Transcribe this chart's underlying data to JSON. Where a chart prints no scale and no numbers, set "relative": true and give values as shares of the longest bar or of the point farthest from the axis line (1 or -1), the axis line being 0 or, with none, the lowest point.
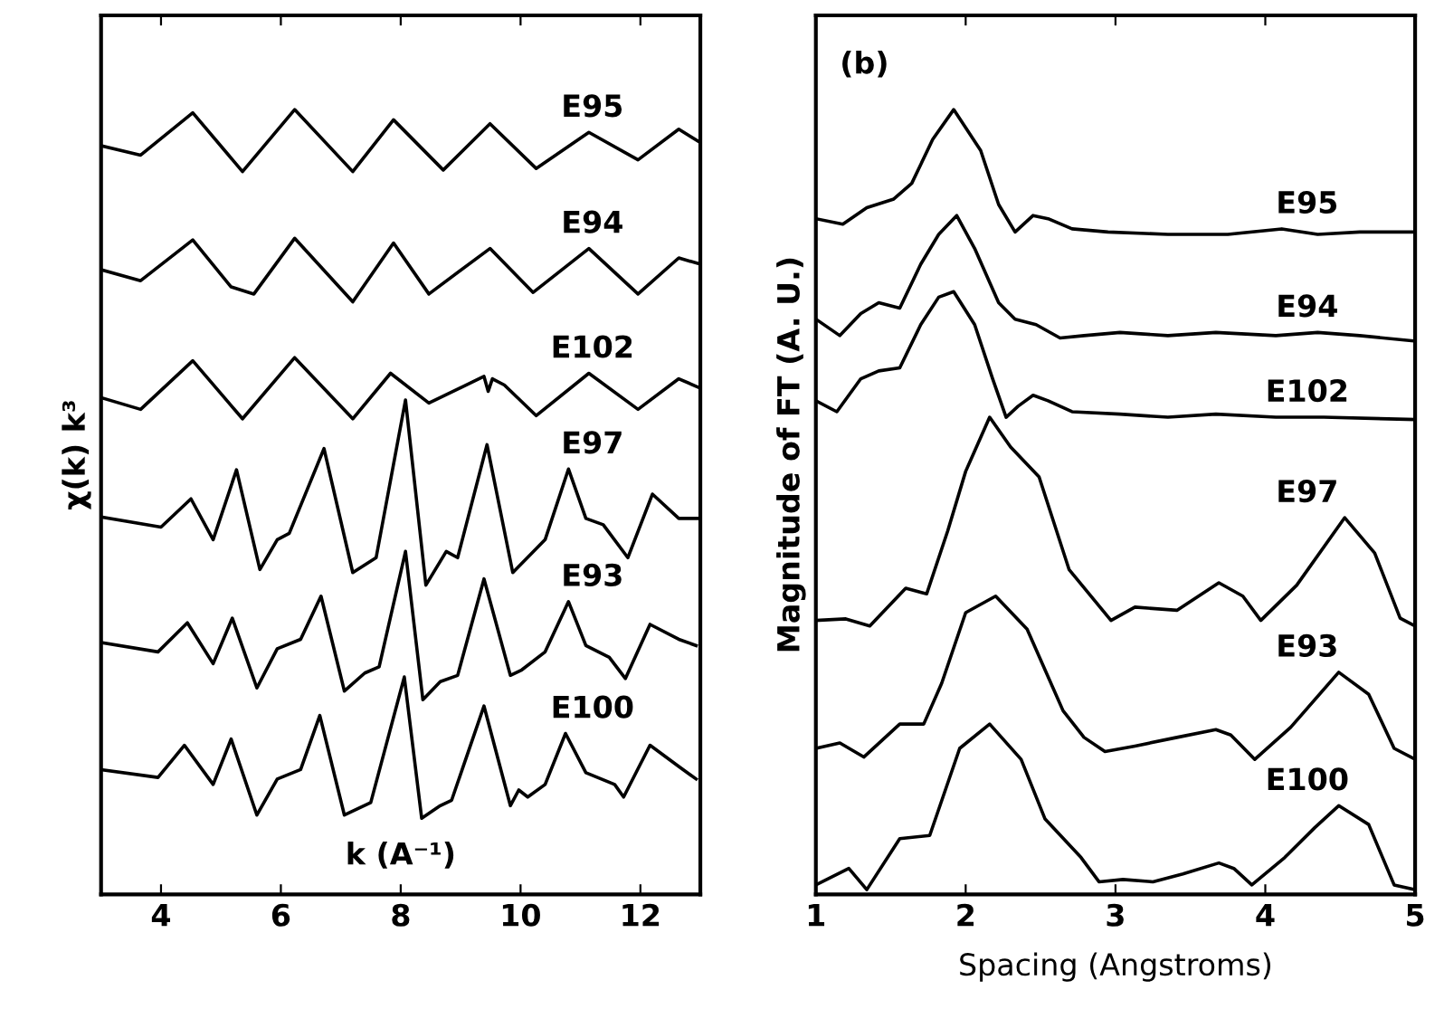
{
  "chart_data": [
    {
      "type": "line",
      "relative": true,
      "tick_labels": "x",
      "xlabel": "k (A⁻¹)",
      "ylabel": "χ(k) k³",
      "xlim": [
        3,
        13
      ],
      "xticks": [
        4,
        6,
        8,
        10,
        12
      ],
      "series": [
        {
          "name": "E95",
          "color": "#000000",
          "x": [
            3.0,
            3.66,
            4.53,
            5.36,
            6.23,
            7.2,
            7.88,
            8.71,
            9.49,
            10.26,
            11.14,
            11.96,
            12.64,
            13.0
          ],
          "values": [
            0.954,
            0.942,
            0.996,
            0.921,
            1.0,
            0.921,
            0.987,
            0.923,
            0.982,
            0.925,
            0.971,
            0.936,
            0.975,
            0.958
          ]
        },
        {
          "name": "E94",
          "color": "#000000",
          "x": [
            3.0,
            3.66,
            4.53,
            5.17,
            5.55,
            6.23,
            7.2,
            7.88,
            8.47,
            9.49,
            10.21,
            11.14,
            11.96,
            12.64,
            13.0
          ],
          "values": [
            0.796,
            0.782,
            0.834,
            0.774,
            0.765,
            0.836,
            0.755,
            0.83,
            0.765,
            0.823,
            0.767,
            0.823,
            0.765,
            0.811,
            0.803
          ]
        },
        {
          "name": "E102",
          "color": "#000000",
          "x": [
            3.0,
            3.66,
            4.53,
            5.36,
            6.23,
            7.2,
            7.83,
            8.47,
            9.39,
            9.46,
            9.53,
            9.73,
            10.26,
            11.14,
            11.96,
            12.64,
            13.0
          ],
          "values": [
            0.633,
            0.618,
            0.68,
            0.606,
            0.684,
            0.606,
            0.664,
            0.626,
            0.66,
            0.641,
            0.657,
            0.649,
            0.61,
            0.664,
            0.618,
            0.657,
            0.645
          ]
        },
        {
          "name": "E97",
          "color": "#000000",
          "x": [
            3.0,
            4.0,
            4.5,
            4.87,
            5.26,
            5.65,
            5.94,
            6.14,
            6.72,
            7.2,
            7.59,
            8.08,
            8.42,
            8.76,
            8.95,
            9.44,
            9.87,
            10.41,
            10.8,
            11.09,
            11.38,
            11.79,
            12.2,
            12.64,
            12.98
          ],
          "values": [
            0.481,
            0.468,
            0.504,
            0.452,
            0.541,
            0.414,
            0.452,
            0.46,
            0.568,
            0.41,
            0.429,
            0.63,
            0.394,
            0.437,
            0.429,
            0.573,
            0.41,
            0.452,
            0.542,
            0.479,
            0.471,
            0.429,
            0.51,
            0.479,
            0.479
          ]
        },
        {
          "name": "E93",
          "color": "#000000",
          "x": [
            3.0,
            3.95,
            4.44,
            4.87,
            5.19,
            5.6,
            5.94,
            6.33,
            6.67,
            7.06,
            7.4,
            7.64,
            8.08,
            8.37,
            8.66,
            8.95,
            9.39,
            9.83,
            10.02,
            10.41,
            10.8,
            11.09,
            11.48,
            11.75,
            12.16,
            12.64,
            12.93
          ],
          "values": [
            0.321,
            0.309,
            0.346,
            0.294,
            0.352,
            0.263,
            0.313,
            0.325,
            0.38,
            0.259,
            0.282,
            0.29,
            0.437,
            0.248,
            0.271,
            0.279,
            0.402,
            0.279,
            0.286,
            0.309,
            0.373,
            0.317,
            0.302,
            0.275,
            0.344,
            0.325,
            0.317
          ]
        },
        {
          "name": "E100",
          "color": "#000000",
          "x": [
            3.0,
            3.95,
            4.39,
            4.87,
            5.17,
            5.6,
            5.94,
            6.33,
            6.65,
            7.06,
            7.5,
            8.06,
            8.35,
            8.66,
            8.85,
            9.39,
            9.83,
            9.97,
            10.12,
            10.41,
            10.75,
            11.09,
            11.57,
            11.72,
            12.16,
            12.64,
            12.93
          ],
          "values": [
            0.159,
            0.149,
            0.19,
            0.14,
            0.198,
            0.101,
            0.147,
            0.159,
            0.228,
            0.101,
            0.117,
            0.277,
            0.097,
            0.113,
            0.12,
            0.24,
            0.113,
            0.133,
            0.124,
            0.14,
            0.205,
            0.155,
            0.14,
            0.124,
            0.19,
            0.163,
            0.147
          ]
        }
      ]
    },
    {
      "type": "line",
      "relative": true,
      "tick_labels": "x",
      "xlabel": "Spacing (Angstroms)",
      "ylabel": "Magnitude of FT (A. U.)",
      "xlim": [
        1,
        5
      ],
      "xticks": [
        1,
        2,
        3,
        4,
        5
      ],
      "annotations": [
        "(b)"
      ],
      "series": [
        {
          "name": "E95",
          "color": "#000000",
          "x": [
            1.0,
            1.18,
            1.34,
            1.52,
            1.64,
            1.78,
            1.92,
            2.1,
            2.22,
            2.33,
            2.45,
            2.55,
            2.71,
            2.95,
            3.35,
            3.75,
            4.11,
            4.35,
            4.63,
            5.0
          ],
          "values": [
            0.861,
            0.854,
            0.875,
            0.886,
            0.906,
            0.962,
            1.0,
            0.948,
            0.879,
            0.844,
            0.865,
            0.861,
            0.848,
            0.844,
            0.841,
            0.841,
            0.848,
            0.841,
            0.844,
            0.844
          ]
        },
        {
          "name": "E94",
          "color": "#000000",
          "x": [
            1.0,
            1.16,
            1.3,
            1.42,
            1.56,
            1.7,
            1.82,
            1.94,
            2.06,
            2.22,
            2.33,
            2.47,
            2.63,
            2.79,
            3.03,
            3.35,
            3.67,
            4.07,
            4.35,
            4.63,
            5.0
          ],
          "values": [
            0.733,
            0.712,
            0.74,
            0.754,
            0.747,
            0.803,
            0.841,
            0.865,
            0.823,
            0.754,
            0.733,
            0.726,
            0.709,
            0.712,
            0.716,
            0.712,
            0.716,
            0.712,
            0.716,
            0.712,
            0.705
          ]
        },
        {
          "name": "E102",
          "color": "#000000",
          "x": [
            1.0,
            1.14,
            1.3,
            1.42,
            1.56,
            1.7,
            1.82,
            1.92,
            2.06,
            2.18,
            2.27,
            2.35,
            2.45,
            2.55,
            2.71,
            3.03,
            3.35,
            3.67,
            4.07,
            4.39,
            5.0
          ],
          "values": [
            0.629,
            0.615,
            0.657,
            0.667,
            0.671,
            0.726,
            0.761,
            0.768,
            0.726,
            0.657,
            0.608,
            0.622,
            0.636,
            0.629,
            0.615,
            0.612,
            0.608,
            0.612,
            0.608,
            0.608,
            0.605
          ]
        },
        {
          "name": "E97",
          "color": "#000000",
          "x": [
            1.0,
            1.2,
            1.36,
            1.6,
            1.74,
            1.88,
            2.0,
            2.16,
            2.3,
            2.49,
            2.69,
            2.97,
            3.13,
            3.41,
            3.69,
            3.85,
            3.97,
            4.21,
            4.53,
            4.73,
            4.9,
            5.0
          ],
          "values": [
            0.349,
            0.351,
            0.342,
            0.39,
            0.383,
            0.463,
            0.539,
            0.608,
            0.57,
            0.532,
            0.414,
            0.349,
            0.366,
            0.362,
            0.397,
            0.38,
            0.349,
            0.394,
            0.48,
            0.435,
            0.352,
            0.342
          ]
        },
        {
          "name": "E93",
          "color": "#000000",
          "x": [
            1.0,
            1.16,
            1.32,
            1.56,
            1.72,
            1.84,
            2.0,
            2.2,
            2.41,
            2.65,
            2.79,
            2.93,
            3.13,
            3.41,
            3.67,
            3.77,
            3.93,
            4.17,
            4.49,
            4.69,
            4.86,
            5.0
          ],
          "values": [
            0.186,
            0.193,
            0.175,
            0.217,
            0.217,
            0.269,
            0.359,
            0.38,
            0.338,
            0.234,
            0.2,
            0.182,
            0.189,
            0.2,
            0.21,
            0.203,
            0.172,
            0.213,
            0.283,
            0.255,
            0.186,
            0.172
          ]
        },
        {
          "name": "E100",
          "color": "#000000",
          "x": [
            1.0,
            1.22,
            1.34,
            1.56,
            1.76,
            1.96,
            2.16,
            2.37,
            2.53,
            2.77,
            2.89,
            3.05,
            3.25,
            3.45,
            3.69,
            3.79,
            3.91,
            4.13,
            4.33,
            4.49,
            4.69,
            4.86,
            5.0
          ],
          "values": [
            0.012,
            0.033,
            0.006,
            0.071,
            0.075,
            0.186,
            0.217,
            0.172,
            0.096,
            0.047,
            0.016,
            0.019,
            0.016,
            0.026,
            0.04,
            0.033,
            0.012,
            0.047,
            0.085,
            0.113,
            0.089,
            0.012,
            0.006
          ]
        }
      ]
    }
  ]
}
